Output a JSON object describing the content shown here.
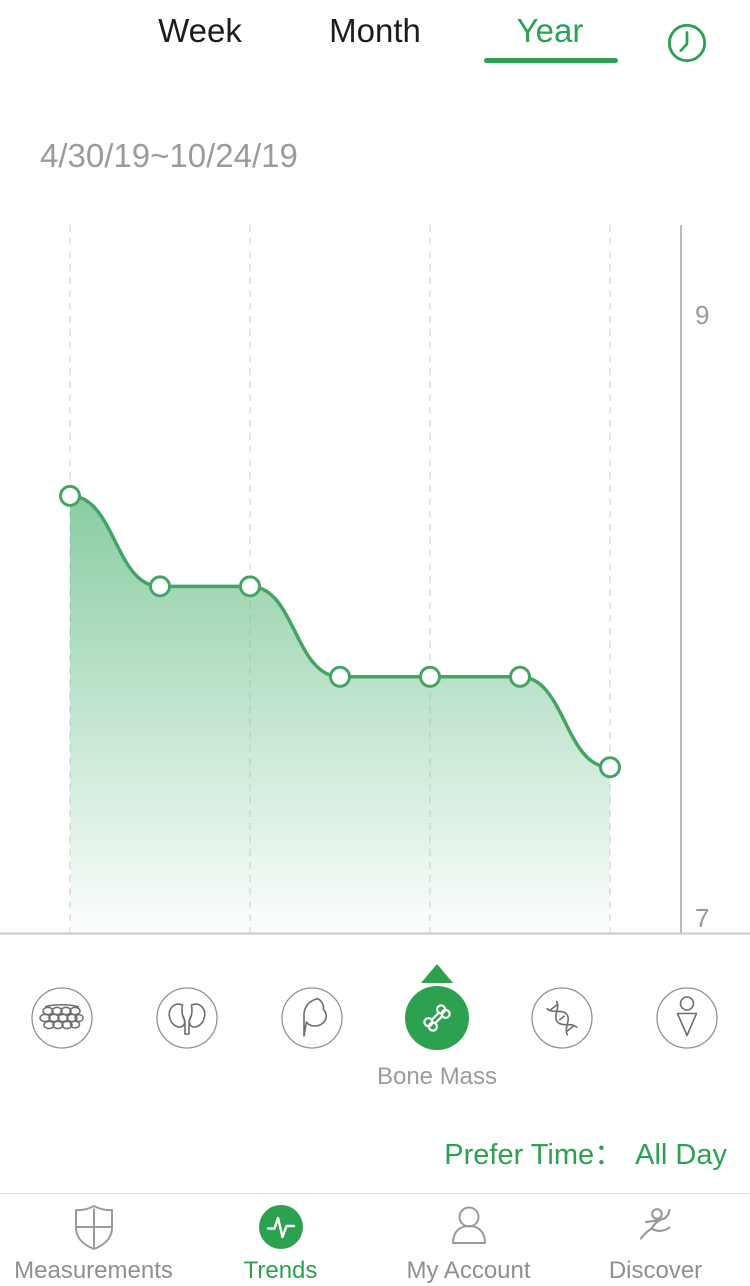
{
  "colors": {
    "green": "#2ca14f",
    "line_green": "#43a563",
    "fill_green": "#6cc08c",
    "tab_text": "#1c1c1c",
    "muted_text": "#9b9b9b",
    "axis_line": "#b9b9b9",
    "bottom_line": "#c9c9c9",
    "grid_line": "#dfdfdf",
    "icon_gray": "#6e6e6e"
  },
  "header": {
    "tabs": [
      {
        "label": "Week",
        "active": false
      },
      {
        "label": "Month",
        "active": false
      },
      {
        "label": "Year",
        "active": true
      }
    ],
    "clock_icon": "clock-icon"
  },
  "date_range": "4/30/19~10/24/19",
  "chart_data": {
    "type": "area",
    "title": "",
    "series": [
      {
        "name": "Bone Mass",
        "values": [
          8.4,
          8.1,
          8.1,
          7.8,
          7.8,
          7.8,
          7.5
        ]
      }
    ],
    "x_range_label": "4/30/19~10/24/19",
    "y_ticks": [
      9,
      7
    ],
    "ylim": [
      6.95,
      9.3
    ],
    "grid": "vertical-dashed",
    "gridline_point_indices": [
      0,
      2,
      4,
      6
    ],
    "legend": "none",
    "marker": "circle",
    "y_axis_side": "right"
  },
  "metrics": {
    "items": [
      {
        "icon": "fat-cells-icon",
        "selected": false
      },
      {
        "icon": "kidneys-icon",
        "selected": false
      },
      {
        "icon": "muscle-icon",
        "selected": false
      },
      {
        "icon": "bone-icon",
        "selected": true
      },
      {
        "icon": "dna-icon",
        "selected": false
      },
      {
        "icon": "body-figure-icon",
        "selected": false
      }
    ],
    "selected_label": "Bone Mass"
  },
  "prefer_time": {
    "label": "Prefer Time：",
    "value": "All Day"
  },
  "bottom_nav": {
    "items": [
      {
        "label": "Measurements",
        "icon": "shield-icon",
        "active": false
      },
      {
        "label": "Trends",
        "icon": "pulse-icon",
        "active": true
      },
      {
        "label": "My Account",
        "icon": "person-icon",
        "active": false
      },
      {
        "label": "Discover",
        "icon": "runner-icon",
        "active": false
      }
    ]
  }
}
